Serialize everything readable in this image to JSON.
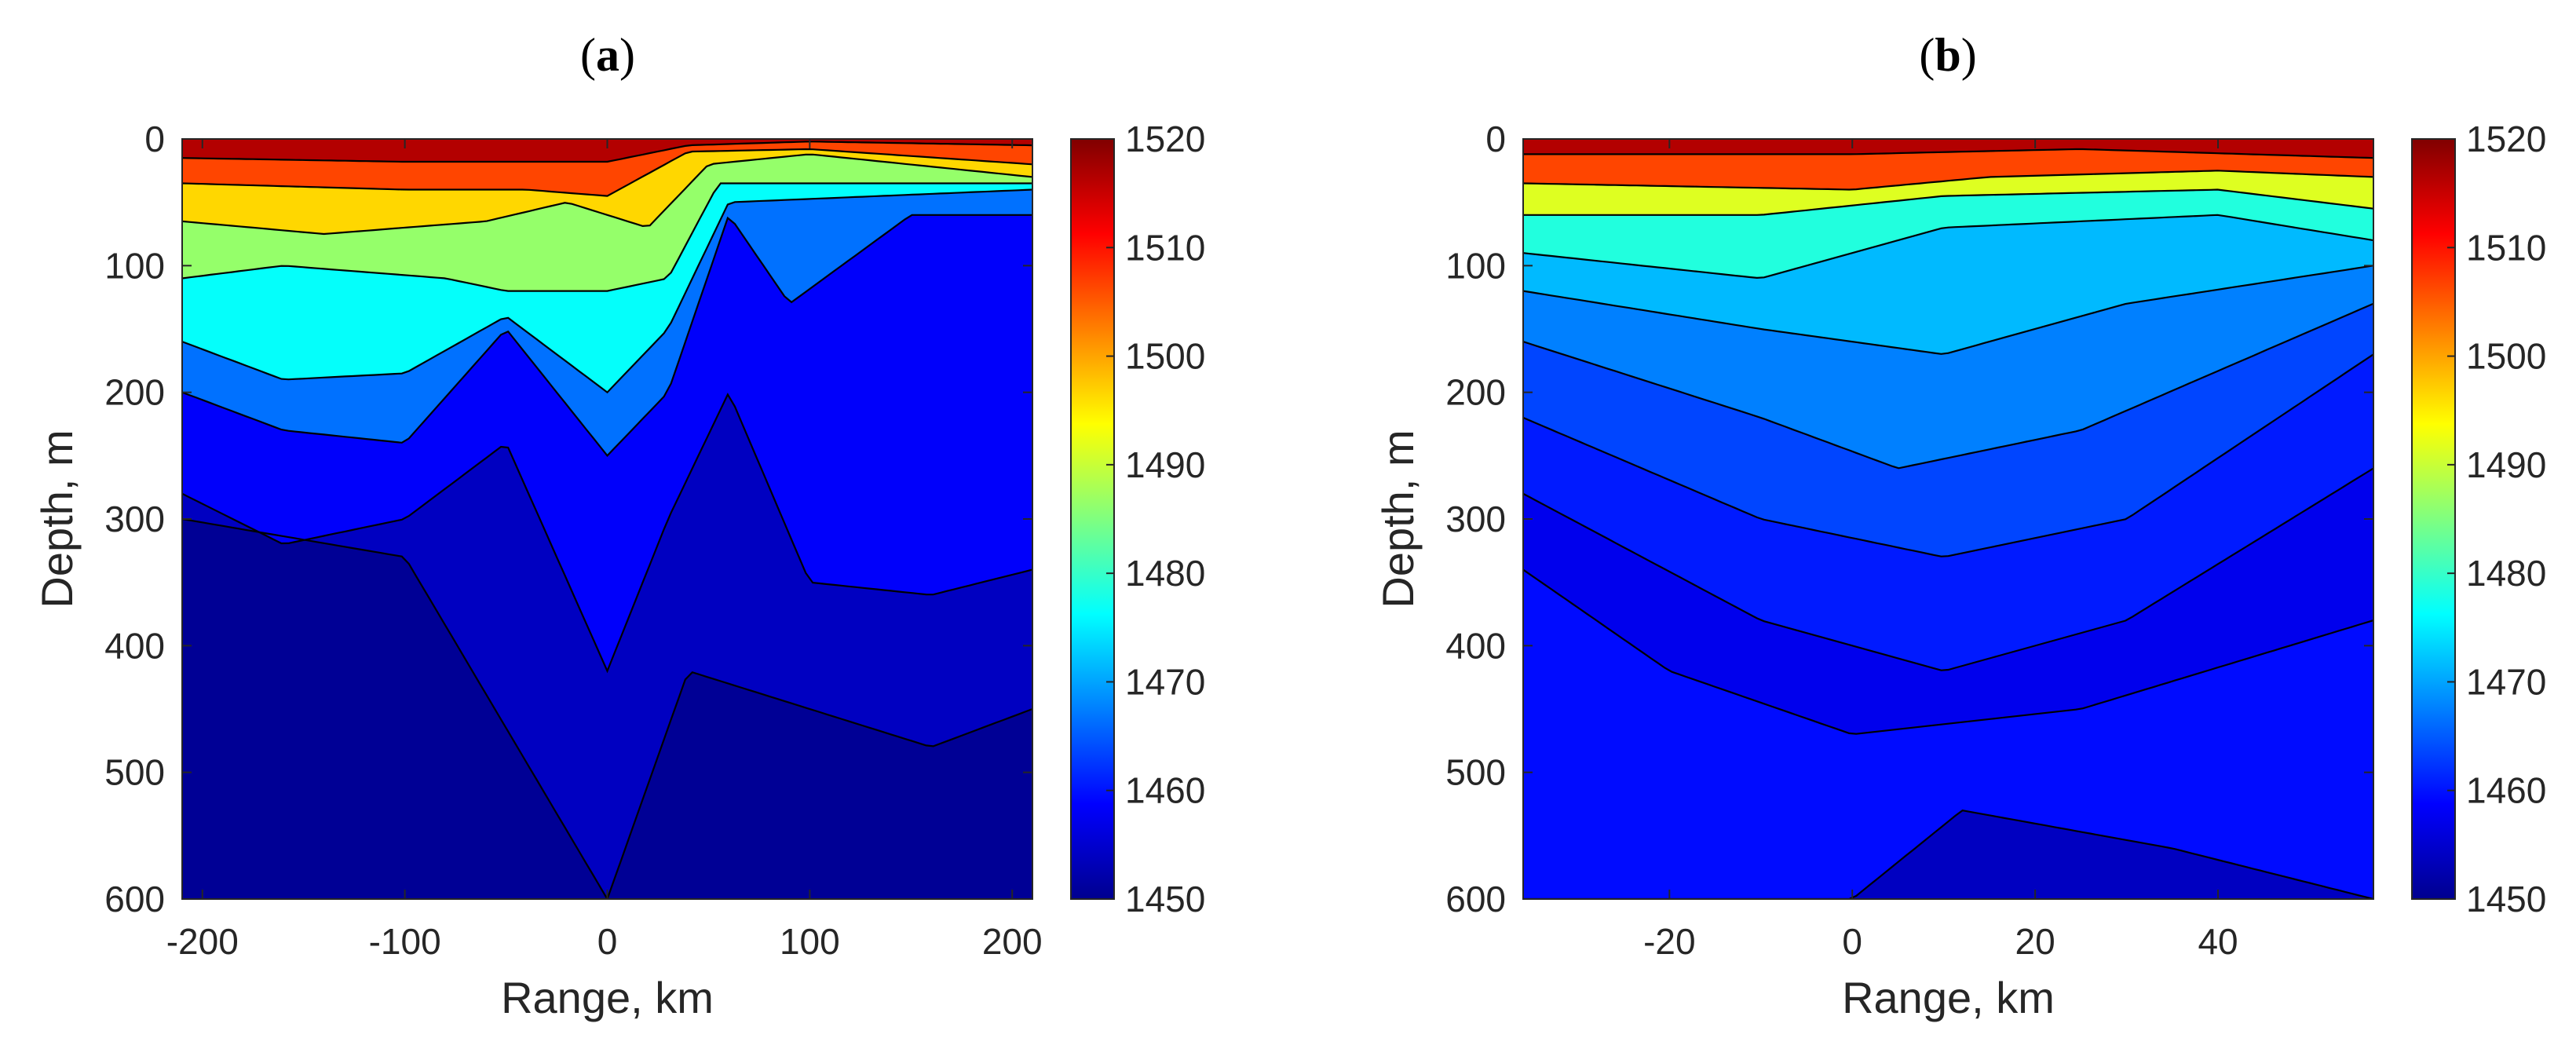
{
  "chart_data": [
    {
      "type": "heatmap",
      "panel_label": "a",
      "xlabel": "Range, km",
      "ylabel": "Depth, m",
      "xlim": [
        -210,
        210
      ],
      "ylim": [
        0,
        600
      ],
      "y_reversed": true,
      "xticks": [
        -200,
        -100,
        0,
        100,
        200
      ],
      "xtick_labels": [
        "-200",
        "-100",
        "0",
        "100",
        "200"
      ],
      "yticks": [
        0,
        100,
        200,
        300,
        400,
        500,
        600
      ],
      "ytick_labels": [
        "0",
        "100",
        "200",
        "300",
        "400",
        "500",
        "600"
      ],
      "colorbar": {
        "min": 1450,
        "max": 1520,
        "ticks": [
          "1450",
          "1460",
          "1470",
          "1480",
          "1490",
          "1500",
          "1510",
          "1520"
        ],
        "colormap": "jet"
      },
      "value_unit": "sound speed",
      "grid": false,
      "legend": "none",
      "contours": [
        {
          "level": 1515,
          "depths_by_range": [
            [
              -210,
              15
            ],
            [
              -100,
              18
            ],
            [
              0,
              18
            ],
            [
              40,
              5
            ],
            [
              100,
              2
            ],
            [
              210,
              5
            ]
          ]
        },
        {
          "level": 1505,
          "depths_by_range": [
            [
              -210,
              35
            ],
            [
              -100,
              40
            ],
            [
              -40,
              40
            ],
            [
              0,
              45
            ],
            [
              40,
              10
            ],
            [
              100,
              8
            ],
            [
              210,
              20
            ]
          ]
        },
        {
          "level": 1495,
          "depths_by_range": [
            [
              -210,
              65
            ],
            [
              -140,
              75
            ],
            [
              -60,
              65
            ],
            [
              -20,
              50
            ],
            [
              0,
              60
            ],
            [
              20,
              70
            ],
            [
              50,
              20
            ],
            [
              100,
              12
            ],
            [
              210,
              30
            ]
          ]
        },
        {
          "level": 1485,
          "depths_by_range": [
            [
              -210,
              110
            ],
            [
              -160,
              100
            ],
            [
              -80,
              110
            ],
            [
              -50,
              120
            ],
            [
              0,
              120
            ],
            [
              30,
              110
            ],
            [
              55,
              35
            ],
            [
              210,
              35
            ]
          ]
        },
        {
          "level": 1475,
          "depths_by_range": [
            [
              -210,
              160
            ],
            [
              -160,
              190
            ],
            [
              -100,
              185
            ],
            [
              -50,
              140
            ],
            [
              0,
              200
            ],
            [
              30,
              150
            ],
            [
              60,
              50
            ],
            [
              210,
              40
            ]
          ]
        },
        {
          "level": 1465,
          "depths_by_range": [
            [
              -210,
              200
            ],
            [
              -160,
              230
            ],
            [
              -100,
              240
            ],
            [
              -50,
              150
            ],
            [
              0,
              250
            ],
            [
              30,
              200
            ],
            [
              60,
              60
            ],
            [
              90,
              130
            ],
            [
              150,
              60
            ],
            [
              210,
              60
            ]
          ]
        },
        {
          "level": 1457,
          "depths_by_range": [
            [
              -210,
              280
            ],
            [
              -160,
              320
            ],
            [
              -100,
              300
            ],
            [
              -50,
              240
            ],
            [
              0,
              420
            ],
            [
              30,
              300
            ],
            [
              60,
              200
            ],
            [
              100,
              350
            ],
            [
              160,
              360
            ],
            [
              210,
              340
            ]
          ]
        },
        {
          "level": 1453,
          "depths_by_range": [
            [
              -210,
              300
            ],
            [
              -100,
              330
            ],
            [
              0,
              600
            ],
            [
              40,
              420
            ],
            [
              100,
              450
            ],
            [
              160,
              480
            ],
            [
              210,
              450
            ]
          ]
        }
      ]
    },
    {
      "type": "heatmap",
      "panel_label": "b",
      "xlabel": "Range, km",
      "ylabel": "Depth, m",
      "xlim": [
        -36,
        57
      ],
      "ylim": [
        0,
        600
      ],
      "y_reversed": true,
      "xticks": [
        -20,
        0,
        20,
        40
      ],
      "xtick_labels": [
        "-20",
        "0",
        "20",
        "40"
      ],
      "yticks": [
        0,
        100,
        200,
        300,
        400,
        500,
        600
      ],
      "ytick_labels": [
        "0",
        "100",
        "200",
        "300",
        "400",
        "500",
        "600"
      ],
      "colorbar": {
        "min": 1450,
        "max": 1520,
        "ticks": [
          "1450",
          "1460",
          "1470",
          "1480",
          "1490",
          "1500",
          "1510",
          "1520"
        ],
        "colormap": "jet"
      },
      "value_unit": "sound speed",
      "grid": false,
      "legend": "none",
      "contours": [
        {
          "level": 1515,
          "depths_by_range": [
            [
              -36,
              12
            ],
            [
              0,
              12
            ],
            [
              25,
              8
            ],
            [
              57,
              15
            ]
          ]
        },
        {
          "level": 1505,
          "depths_by_range": [
            [
              -36,
              35
            ],
            [
              0,
              40
            ],
            [
              15,
              30
            ],
            [
              40,
              25
            ],
            [
              57,
              30
            ]
          ]
        },
        {
          "level": 1490,
          "depths_by_range": [
            [
              -36,
              60
            ],
            [
              -10,
              60
            ],
            [
              10,
              45
            ],
            [
              40,
              40
            ],
            [
              57,
              55
            ]
          ]
        },
        {
          "level": 1477,
          "depths_by_range": [
            [
              -36,
              90
            ],
            [
              -10,
              110
            ],
            [
              10,
              70
            ],
            [
              40,
              60
            ],
            [
              57,
              80
            ]
          ]
        },
        {
          "level": 1470,
          "depths_by_range": [
            [
              -36,
              120
            ],
            [
              -10,
              150
            ],
            [
              10,
              170
            ],
            [
              30,
              130
            ],
            [
              57,
              100
            ]
          ]
        },
        {
          "level": 1466,
          "depths_by_range": [
            [
              -36,
              160
            ],
            [
              -10,
              220
            ],
            [
              5,
              260
            ],
            [
              25,
              230
            ],
            [
              57,
              130
            ]
          ]
        },
        {
          "level": 1462,
          "depths_by_range": [
            [
              -36,
              220
            ],
            [
              -10,
              300
            ],
            [
              10,
              330
            ],
            [
              30,
              300
            ],
            [
              57,
              170
            ]
          ]
        },
        {
          "level": 1459,
          "depths_by_range": [
            [
              -36,
              280
            ],
            [
              -10,
              380
            ],
            [
              10,
              420
            ],
            [
              30,
              380
            ],
            [
              57,
              260
            ]
          ]
        },
        {
          "level": 1456,
          "depths_by_range": [
            [
              -36,
              340
            ],
            [
              -20,
              420
            ],
            [
              0,
              470
            ],
            [
              25,
              450
            ],
            [
              57,
              380
            ]
          ]
        },
        {
          "level": 1458,
          "depths_by_range": [
            [
              -36,
              600
            ],
            [
              0,
              600
            ],
            [
              12,
              530
            ],
            [
              35,
              560
            ],
            [
              57,
              600
            ]
          ]
        }
      ]
    }
  ]
}
